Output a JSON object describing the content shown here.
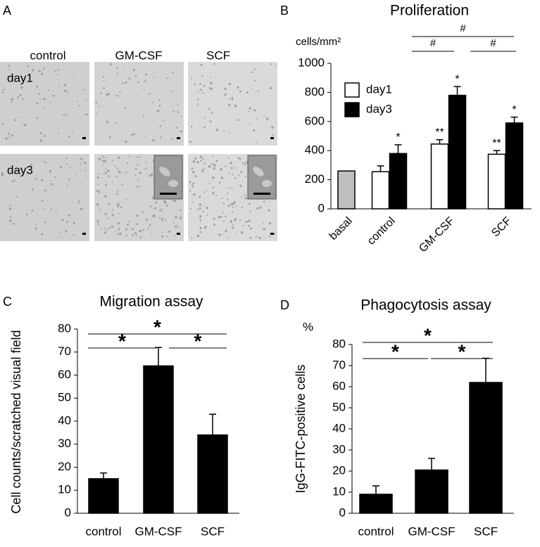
{
  "micrographs": {
    "panel": "A",
    "columns": [
      "control",
      "GM-CSF",
      "SCF"
    ],
    "rows": [
      "day1",
      "day3"
    ]
  },
  "chart_data": [
    {
      "type": "bar",
      "panel": "B",
      "title": "Proliferation",
      "y_label": "cells/mm²",
      "categories": [
        "basal",
        "control",
        "GM-CSF",
        "SCF"
      ],
      "basal": {
        "value": 260,
        "color": "#bfbfbf"
      },
      "series": [
        {
          "name": "day1",
          "color": "#ffffff",
          "values": [
            null,
            255,
            445,
            375
          ],
          "errors": [
            null,
            40,
            30,
            25
          ],
          "significance_marks": [
            null,
            null,
            "**",
            "**"
          ]
        },
        {
          "name": "day3",
          "color": "#000000",
          "values": [
            null,
            380,
            780,
            590
          ],
          "errors": [
            null,
            60,
            60,
            40
          ],
          "significance_marks": [
            null,
            "*",
            "*",
            "*"
          ]
        }
      ],
      "significance": [
        "#",
        "#",
        "#"
      ],
      "ylim": [
        0,
        1000
      ],
      "yticks": [
        0,
        200,
        400,
        600,
        800,
        1000
      ],
      "legend": "upper left"
    },
    {
      "type": "bar",
      "panel": "C",
      "title": "Migration assay",
      "y_label": "Cell counts/scratched visual field",
      "categories": [
        "control",
        "GM-CSF",
        "SCF"
      ],
      "values": [
        15,
        64,
        34
      ],
      "errors": [
        2.5,
        8,
        9
      ],
      "color": "#000000",
      "significance": [
        "*",
        "*",
        "*"
      ],
      "ylim": [
        0,
        80
      ],
      "yticks": [
        0,
        10,
        20,
        30,
        40,
        50,
        60,
        70,
        80
      ]
    },
    {
      "type": "bar",
      "panel": "D",
      "title": "Phagocytosis assay",
      "unit": "%",
      "y_label": "IgG-FITC-positive cells",
      "categories": [
        "control",
        "GM-CSF",
        "SCF"
      ],
      "values": [
        9,
        20.5,
        62
      ],
      "errors": [
        4,
        5.5,
        11.5
      ],
      "color": "#000000",
      "significance": [
        "*",
        "*",
        "*"
      ],
      "ylim": [
        0,
        80
      ],
      "yticks": [
        0,
        10,
        20,
        30,
        40,
        50,
        60,
        70,
        80
      ]
    }
  ]
}
